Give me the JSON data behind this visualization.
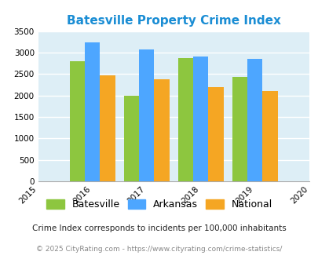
{
  "title": "Batesville Property Crime Index",
  "title_color": "#1a8dd4",
  "years": [
    2015,
    2016,
    2017,
    2018,
    2019,
    2020
  ],
  "bar_years": [
    2016,
    2017,
    2018,
    2019
  ],
  "batesville": [
    2800,
    1990,
    2880,
    2430
  ],
  "arkansas": [
    3240,
    3080,
    2900,
    2850
  ],
  "national": [
    2470,
    2380,
    2200,
    2100
  ],
  "color_batesville": "#8dc63f",
  "color_arkansas": "#4da6ff",
  "color_national": "#f5a623",
  "ylim": [
    0,
    3500
  ],
  "yticks": [
    0,
    500,
    1000,
    1500,
    2000,
    2500,
    3000,
    3500
  ],
  "legend_labels": [
    "Batesville",
    "Arkansas",
    "National"
  ],
  "footnote1": "Crime Index corresponds to incidents per 100,000 inhabitants",
  "footnote2": "© 2025 CityRating.com - https://www.cityrating.com/crime-statistics/",
  "bg_color": "#ddeef6",
  "fig_bg": "#ffffff"
}
